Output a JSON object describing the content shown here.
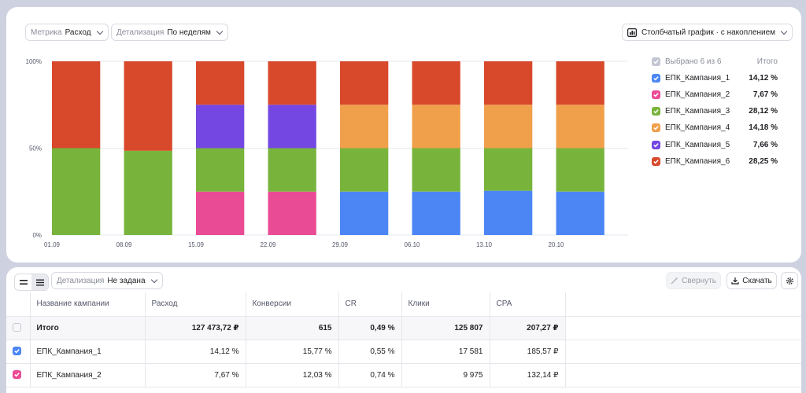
{
  "toolbar": {
    "metric_label": "Метрика",
    "metric_value": "Расход",
    "detail_label": "Детализация",
    "detail_value": "По неделям",
    "chart_type": "Столбчатый график · с накоплением"
  },
  "legend": {
    "header_label": "Выбрано 6 из 6",
    "header_total": "Итого",
    "items": [
      {
        "name": "ЕПК_Кампания_1",
        "value": "14,12 %",
        "color": "#4c86f5"
      },
      {
        "name": "ЕПК_Кампания_2",
        "value": "7,67 %",
        "color": "#ea4b95"
      },
      {
        "name": "ЕПК_Кампания_3",
        "value": "28,12 %",
        "color": "#78b43c"
      },
      {
        "name": "ЕПК_Кампания_4",
        "value": "14,18 %",
        "color": "#f0a04b"
      },
      {
        "name": "ЕПК_Кампания_5",
        "value": "7,66 %",
        "color": "#7447e2"
      },
      {
        "name": "ЕПК_Кампания_6",
        "value": "28,25 %",
        "color": "#d8492c"
      }
    ]
  },
  "chart_data": {
    "type": "bar",
    "stacked": true,
    "categories": [
      "01.09",
      "08.09",
      "15.09",
      "22.09",
      "29.09",
      "06.10",
      "13.10",
      "20.10"
    ],
    "y_ticks": [
      "0%",
      "50%",
      "100%"
    ],
    "ylim": [
      0,
      100
    ],
    "grid": true,
    "legend_position": "right",
    "series": [
      {
        "name": "ЕПК_Кампания_1",
        "color": "#4c86f5",
        "values": [
          0,
          0,
          0,
          0,
          25,
          25,
          25.5,
          25
        ]
      },
      {
        "name": "ЕПК_Кампания_2",
        "color": "#ea4b95",
        "values": [
          0,
          0,
          25,
          25,
          0,
          0,
          0,
          0
        ]
      },
      {
        "name": "ЕПК_Кампания_3",
        "color": "#78b43c",
        "values": [
          50,
          48.5,
          25,
          25,
          25,
          25,
          24.5,
          25
        ]
      },
      {
        "name": "ЕПК_Кампания_4",
        "color": "#f0a04b",
        "values": [
          0,
          0,
          0,
          0,
          25,
          25,
          25,
          25
        ]
      },
      {
        "name": "ЕПК_Кампания_5",
        "color": "#7447e2",
        "values": [
          0,
          0,
          25,
          25,
          0,
          0,
          0,
          0
        ]
      },
      {
        "name": "ЕПК_Кампания_6",
        "color": "#d8492c",
        "values": [
          50,
          51.5,
          25,
          25,
          25,
          25,
          25,
          25
        ]
      }
    ]
  },
  "table_toolbar": {
    "detail_label": "Детализация",
    "detail_value": "Не задана",
    "collapse_label": "Свернуть",
    "download_label": "Скачать"
  },
  "table": {
    "columns": [
      "Название кампании",
      "Расход",
      "Конверсии",
      "CR",
      "Клики",
      "CPA"
    ],
    "total": {
      "name": "Итого",
      "cells": [
        "127 473,72 ₽",
        "615",
        "0,49 %",
        "125 807",
        "207,27 ₽"
      ]
    },
    "rows": [
      {
        "name": "ЕПК_Кампания_1",
        "color": "#4c86f5",
        "cells": [
          "14,12 %",
          "15,77 %",
          "0,55 %",
          "17 581",
          "185,57 ₽"
        ]
      },
      {
        "name": "ЕПК_Кампания_2",
        "color": "#ea4b95",
        "cells": [
          "7,67 %",
          "12,03 %",
          "0,74 %",
          "9 975",
          "132,14 ₽"
        ]
      }
    ]
  }
}
